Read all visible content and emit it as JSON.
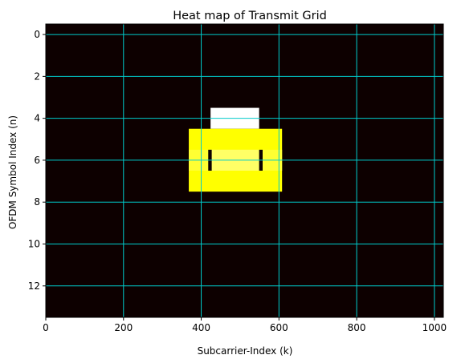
{
  "chart_data": {
    "type": "heatmap",
    "title": "Heat map of Transmit Grid",
    "xlabel": "Subcarrier-Index (k)",
    "ylabel": "OFDM Symbol Index (n)",
    "xlim": [
      0,
      1023
    ],
    "ylim": [
      13.5,
      -0.5
    ],
    "xticks": [
      0,
      200,
      400,
      600,
      800,
      1000
    ],
    "yticks": [
      0,
      2,
      4,
      6,
      8,
      10,
      12
    ],
    "grid": true,
    "grid_color": "#00cccc",
    "background_color": "#0d0000",
    "regions": [
      {
        "label": "white-block",
        "color": "#ffffff",
        "x0": 424,
        "x1": 549,
        "y0": 3.5,
        "y1": 4.5
      },
      {
        "label": "yellow-block",
        "color": "#ffff00",
        "x0": 368,
        "x1": 608,
        "y0": 4.5,
        "y1": 7.5
      },
      {
        "label": "yellow-band-light",
        "color": "#ffff33",
        "x0": 368,
        "x1": 608,
        "y0": 5.5,
        "y1": 6.5
      },
      {
        "label": "yellow-inner-light",
        "color": "#ffff66",
        "x0": 424,
        "x1": 549,
        "y0": 5.5,
        "y1": 6.5
      },
      {
        "label": "dark-bar-left",
        "color": "#0d0000",
        "x0": 418,
        "x1": 427,
        "y0": 5.5,
        "y1": 6.5
      },
      {
        "label": "dark-bar-right",
        "color": "#0d0000",
        "x0": 549,
        "x1": 558,
        "y0": 5.5,
        "y1": 6.5
      }
    ]
  }
}
